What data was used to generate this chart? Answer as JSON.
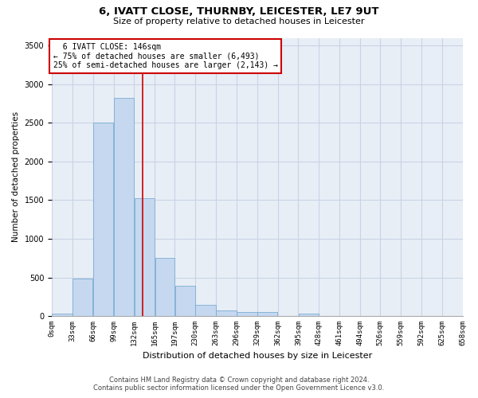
{
  "title": "6, IVATT CLOSE, THURNBY, LEICESTER, LE7 9UT",
  "subtitle": "Size of property relative to detached houses in Leicester",
  "xlabel": "Distribution of detached houses by size in Leicester",
  "ylabel": "Number of detached properties",
  "footer_line1": "Contains HM Land Registry data © Crown copyright and database right 2024.",
  "footer_line2": "Contains public sector information licensed under the Open Government Licence v3.0.",
  "bar_color": "#c5d8ef",
  "bar_edge_color": "#7aadd4",
  "grid_color": "#c8d4e4",
  "background_color": "#e8eef6",
  "annotation_box_color": "#cc0000",
  "vline_color": "#cc0000",
  "bins": [
    0,
    33,
    66,
    99,
    132,
    165,
    197,
    230,
    263,
    296,
    329,
    362,
    395,
    428,
    461,
    494,
    526,
    559,
    592,
    625,
    658
  ],
  "bin_labels": [
    "0sqm",
    "33sqm",
    "66sqm",
    "99sqm",
    "132sqm",
    "165sqm",
    "197sqm",
    "230sqm",
    "263sqm",
    "296sqm",
    "329sqm",
    "362sqm",
    "395sqm",
    "428sqm",
    "461sqm",
    "494sqm",
    "526sqm",
    "559sqm",
    "592sqm",
    "625sqm",
    "658sqm"
  ],
  "counts": [
    30,
    480,
    2500,
    2820,
    1520,
    750,
    390,
    140,
    70,
    55,
    55,
    5,
    30,
    0,
    0,
    0,
    0,
    0,
    0,
    0
  ],
  "vline_x": 146,
  "annotation_text_line1": "6 IVATT CLOSE: 146sqm",
  "annotation_text_line2": "← 75% of detached houses are smaller (6,493)",
  "annotation_text_line3": "25% of semi-detached houses are larger (2,143) →",
  "ylim": [
    0,
    3600
  ],
  "yticks": [
    0,
    500,
    1000,
    1500,
    2000,
    2500,
    3000,
    3500
  ]
}
